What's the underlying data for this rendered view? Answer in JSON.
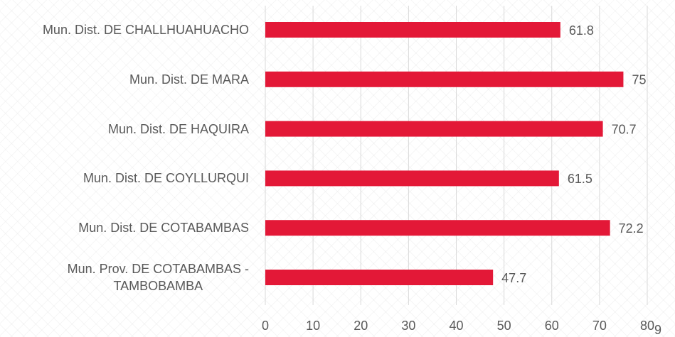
{
  "chart_data": {
    "type": "bar",
    "orientation": "horizontal",
    "categories": [
      "Mun. Dist. DE CHALLHUAHUACHO",
      "Mun. Dist. DE MARA",
      "Mun. Dist. DE HAQUIRA",
      "Mun. Dist. DE COYLLURQUI",
      "Mun. Dist. DE COTABAMBAS",
      "Mun. Prov. DE COTABAMBAS -\nTAMBOBAMBA"
    ],
    "values": [
      61.8,
      75,
      70.7,
      61.5,
      72.2,
      47.7
    ],
    "color": "#e31837",
    "xlim": [
      0,
      80
    ],
    "xticks": [
      0,
      10,
      20,
      30,
      40,
      50,
      60,
      70,
      80
    ],
    "grid": true,
    "page_number": "9"
  }
}
